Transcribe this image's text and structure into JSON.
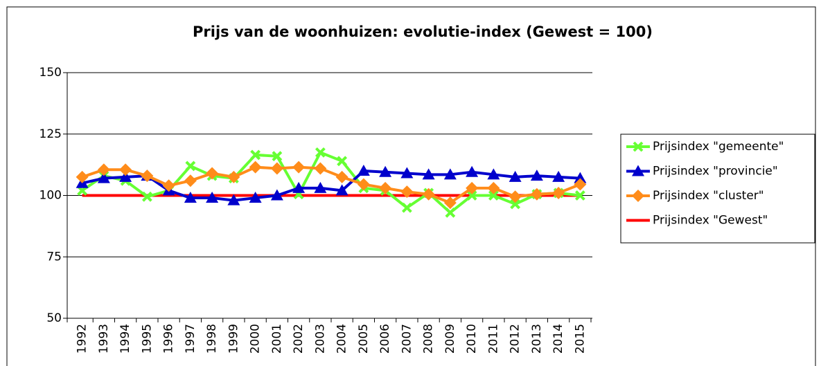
{
  "chart_data": {
    "type": "line",
    "title": "Prijs van de woonhuizen: evolutie-index (Gewest = 100)",
    "categories": [
      "1992",
      "1993",
      "1994",
      "1995",
      "1996",
      "1997",
      "1998",
      "1999",
      "2000",
      "2001",
      "2002",
      "2003",
      "2004",
      "2005",
      "2006",
      "2007",
      "2008",
      "2009",
      "2010",
      "2011",
      "2012",
      "2013",
      "2014",
      "2015"
    ],
    "series": [
      {
        "name": "Prijsindex \"gemeente\"",
        "color": "#66ff33",
        "marker": "x",
        "values": [
          102,
          108,
          106,
          99.5,
          102,
          112,
          108,
          107,
          116.5,
          116,
          100.5,
          117.5,
          114,
          103,
          102,
          95,
          101,
          93,
          100,
          100,
          96.5,
          100.5,
          101,
          100
        ]
      },
      {
        "name": "Prijsindex \"provincie\"",
        "color": "#0000cc",
        "marker": "triangle",
        "values": [
          105,
          107,
          107.5,
          108,
          102,
          99,
          99,
          98,
          99,
          100,
          103,
          103,
          102,
          110,
          109.5,
          109,
          108.5,
          108.5,
          109.5,
          108.5,
          107.5,
          108,
          107.5,
          107
        ]
      },
      {
        "name": "Prijsindex \"cluster\"",
        "color": "#ff8c1a",
        "marker": "diamond",
        "values": [
          107.5,
          110.5,
          110.5,
          108,
          104,
          106,
          109,
          107.5,
          111.5,
          111,
          111.5,
          111,
          107.5,
          104.5,
          103,
          101.5,
          100.5,
          97,
          103,
          103,
          99.5,
          100.5,
          101,
          104.5
        ]
      },
      {
        "name": "Prijsindex \"Gewest\"",
        "color": "#ff0000",
        "marker": "none",
        "values": [
          100,
          100,
          100,
          100,
          100,
          100,
          100,
          100,
          100,
          100,
          100,
          100,
          100,
          100,
          100,
          100,
          100,
          100,
          100,
          100,
          100,
          100,
          100,
          100
        ]
      }
    ],
    "ylim": [
      50,
      150
    ],
    "yticks": [
      50,
      75,
      100,
      125,
      150
    ],
    "grid": true,
    "legend": "right"
  }
}
